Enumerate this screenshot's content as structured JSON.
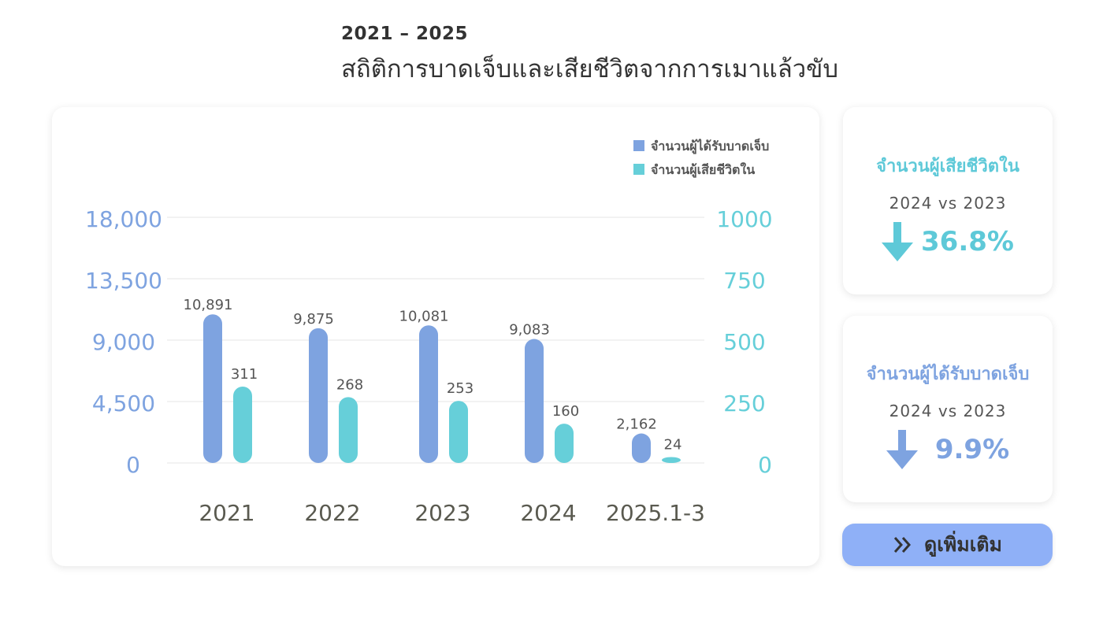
{
  "header": {
    "years": "2021 – 2025",
    "title": "สถิติการบาดเจ็บและเสียชีวิตจากการเมาแล้วขับ"
  },
  "colors": {
    "injured": "#7ea3e0",
    "deaths": "#66cfd9",
    "button": "#8fb0f7"
  },
  "chart_data": {
    "type": "bar",
    "categories": [
      "2021",
      "2022",
      "2023",
      "2024",
      "2025.1-3"
    ],
    "series": [
      {
        "name": "จำนวนผู้ได้รับบาดเจ็บ",
        "axis": "left",
        "values": [
          10891,
          9875,
          10081,
          9083,
          2162
        ],
        "labels": [
          "10,891",
          "9,875",
          "10,081",
          "9,083",
          "2,162"
        ]
      },
      {
        "name": "จำนวนผู้เสียชีวิตใน",
        "axis": "right",
        "values": [
          311,
          268,
          253,
          160,
          24
        ],
        "labels": [
          "311",
          "268",
          "253",
          "160",
          "24"
        ]
      }
    ],
    "left_axis": {
      "ylim": [
        0,
        18000
      ],
      "ticks": [
        "0",
        "4,500",
        "9,000",
        "13,500",
        "18,000"
      ]
    },
    "right_axis": {
      "ylim": [
        0,
        1000
      ],
      "ticks": [
        "0",
        "250",
        "500",
        "750",
        "1000"
      ]
    },
    "grid": true,
    "legend": "top-right"
  },
  "stats": {
    "deaths": {
      "title": "จำนวนผู้เสียชีวิตใน",
      "compare": "2024 vs 2023",
      "direction": "down",
      "percent": "36.8%"
    },
    "injuries": {
      "title": "จำนวนผู้ได้รับบาดเจ็บ",
      "compare": "2024 vs 2023",
      "direction": "down",
      "percent": "9.9%"
    }
  },
  "button": {
    "label": "ดูเพิ่มเติม",
    "icon": "double-chevron-right-icon"
  }
}
